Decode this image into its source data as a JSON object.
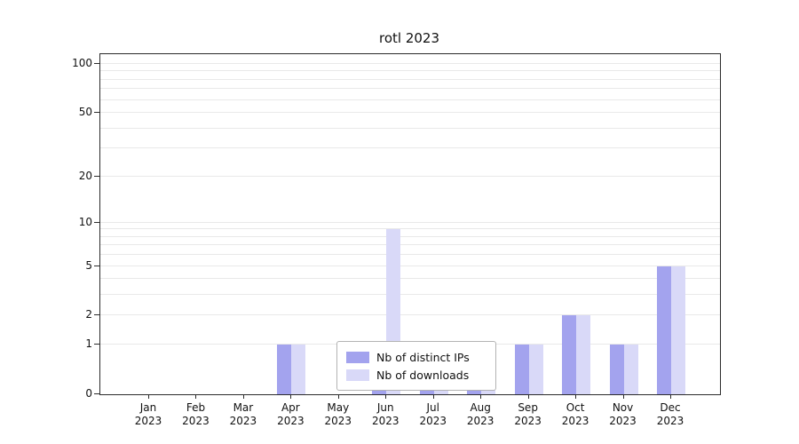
{
  "chart_data": {
    "type": "bar",
    "title": "rotl 2023",
    "categories": [
      "Jan",
      "Feb",
      "Mar",
      "Apr",
      "May",
      "Jun",
      "Jul",
      "Aug",
      "Sep",
      "Oct",
      "Nov",
      "Dec"
    ],
    "year": "2023",
    "series": [
      {
        "name": "Nb of distinct IPs",
        "color": "#a3a3ee",
        "values": [
          0,
          0,
          0,
          1,
          0,
          1,
          1,
          1,
          1,
          2,
          1,
          5
        ]
      },
      {
        "name": "Nb of downloads",
        "color": "#d9d9f8",
        "values": [
          0,
          0,
          0,
          1,
          0,
          9,
          1,
          1,
          1,
          2,
          1,
          5
        ]
      }
    ],
    "yticks": [
      0,
      1,
      2,
      5,
      10,
      20,
      50,
      100
    ],
    "minor_gridlines": [
      1,
      2,
      3,
      4,
      5,
      6,
      7,
      8,
      9,
      10,
      20,
      30,
      40,
      50,
      60,
      70,
      80,
      90,
      100
    ],
    "scale": "log1p",
    "ylim": [
      0,
      115
    ],
    "grid": true,
    "legend_position": "lower center",
    "colors": {
      "grid": "#e9e9e9",
      "axis": "#2b2b2b",
      "background": "#ffffff"
    }
  }
}
